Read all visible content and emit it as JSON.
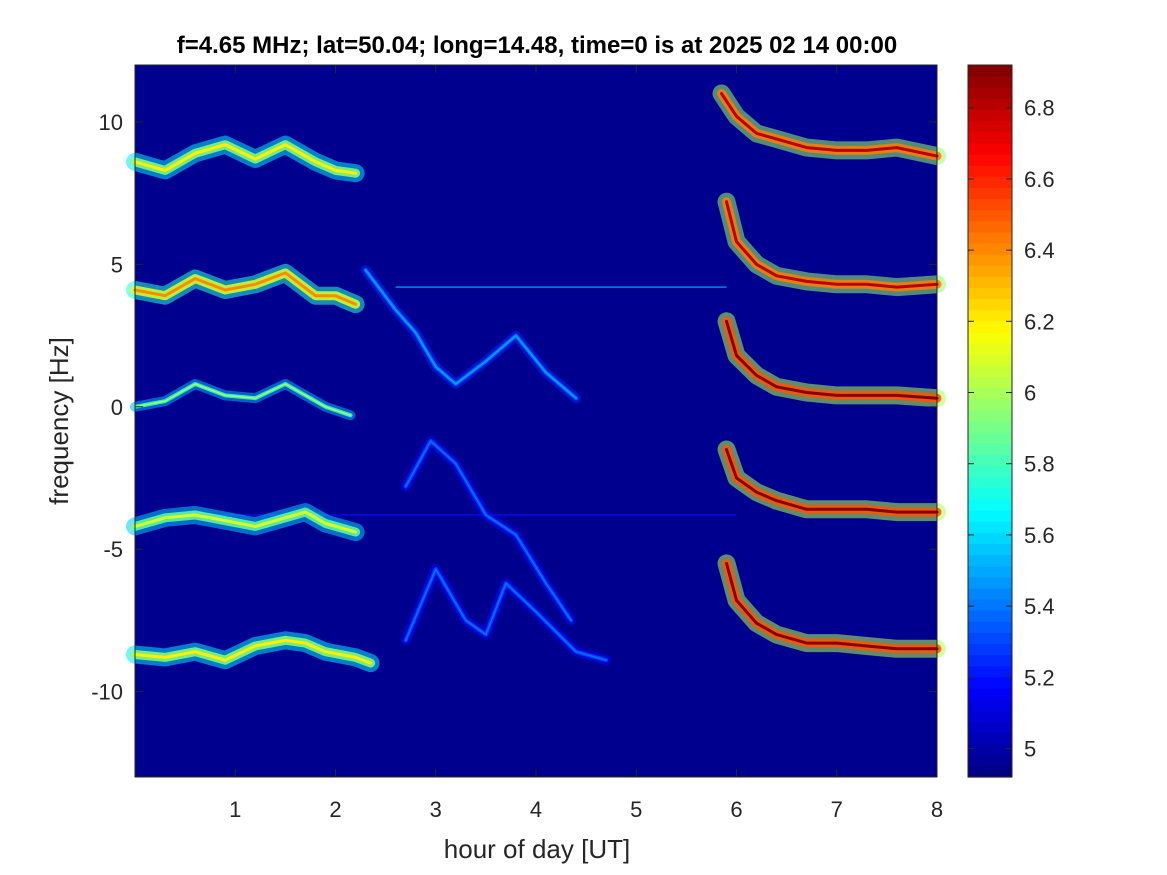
{
  "chart_data": {
    "type": "heatmap",
    "title": "f=4.65 MHz;  lat=50.04; long=14.48, time=0 is at 2025 02 14 00:00",
    "xlabel": "hour of day [UT]",
    "ylabel": "frequency [Hz]",
    "xlim": [
      0,
      8
    ],
    "ylim": [
      -13,
      12
    ],
    "xticks": [
      1,
      2,
      3,
      4,
      5,
      6,
      7,
      8
    ],
    "yticks": [
      10,
      5,
      0,
      -5,
      -10
    ],
    "colormap": "jet",
    "background_color": "#00008f",
    "colorbar": {
      "clim": [
        4.92,
        6.92
      ],
      "ticks": [
        "6.8",
        "6.6",
        "6.4",
        "6.2",
        "6",
        "5.8",
        "5.6",
        "5.4",
        "5.2",
        "5"
      ],
      "tick_values": [
        6.8,
        6.6,
        6.4,
        6.2,
        6.0,
        5.8,
        5.6,
        5.4,
        5.2,
        5.0
      ]
    },
    "traces": [
      {
        "name": "",
        "offset": 8.8,
        "intensity": 6.2,
        "points": [
          [
            0.0,
            8.6
          ],
          [
            0.3,
            8.3
          ],
          [
            0.6,
            8.9
          ],
          [
            0.9,
            9.2
          ],
          [
            1.2,
            8.7
          ],
          [
            1.5,
            9.2
          ],
          [
            1.8,
            8.6
          ],
          [
            2.0,
            8.3
          ],
          [
            2.2,
            8.2
          ]
        ]
      },
      {
        "name": "",
        "offset": 4.2,
        "intensity": 6.4,
        "points": [
          [
            0.0,
            4.1
          ],
          [
            0.3,
            3.9
          ],
          [
            0.6,
            4.5
          ],
          [
            0.9,
            4.1
          ],
          [
            1.2,
            4.3
          ],
          [
            1.5,
            4.7
          ],
          [
            1.8,
            3.9
          ],
          [
            2.0,
            3.9
          ],
          [
            2.2,
            3.6
          ]
        ]
      },
      {
        "name": "",
        "offset": 0.2,
        "intensity": 6.0,
        "points": [
          [
            0.0,
            0.0
          ],
          [
            0.3,
            0.2
          ],
          [
            0.6,
            0.8
          ],
          [
            0.9,
            0.4
          ],
          [
            1.2,
            0.3
          ],
          [
            1.5,
            0.8
          ],
          [
            1.7,
            0.4
          ],
          [
            1.9,
            0.0
          ],
          [
            2.15,
            -0.3
          ]
        ]
      },
      {
        "name": "",
        "offset": -4.0,
        "intensity": 6.1,
        "points": [
          [
            0.0,
            -4.2
          ],
          [
            0.3,
            -3.9
          ],
          [
            0.6,
            -3.8
          ],
          [
            0.9,
            -4.0
          ],
          [
            1.2,
            -4.2
          ],
          [
            1.5,
            -3.9
          ],
          [
            1.7,
            -3.7
          ],
          [
            1.9,
            -4.1
          ],
          [
            2.2,
            -4.4
          ]
        ]
      },
      {
        "name": "",
        "offset": -8.6,
        "intensity": 6.2,
        "points": [
          [
            0.0,
            -8.7
          ],
          [
            0.3,
            -8.8
          ],
          [
            0.6,
            -8.6
          ],
          [
            0.9,
            -8.9
          ],
          [
            1.2,
            -8.4
          ],
          [
            1.5,
            -8.2
          ],
          [
            1.7,
            -8.3
          ],
          [
            1.9,
            -8.6
          ],
          [
            2.2,
            -8.8
          ],
          [
            2.35,
            -9.0
          ]
        ]
      },
      {
        "name": "",
        "offset": 9.0,
        "intensity": 6.8,
        "points": [
          [
            5.85,
            11.0
          ],
          [
            6.0,
            10.2
          ],
          [
            6.2,
            9.6
          ],
          [
            6.4,
            9.4
          ],
          [
            6.7,
            9.1
          ],
          [
            7.0,
            9.0
          ],
          [
            7.3,
            9.0
          ],
          [
            7.6,
            9.1
          ],
          [
            8.0,
            8.8
          ]
        ]
      },
      {
        "name": "",
        "offset": 4.3,
        "intensity": 6.8,
        "points": [
          [
            5.9,
            7.2
          ],
          [
            6.0,
            5.8
          ],
          [
            6.2,
            5.0
          ],
          [
            6.4,
            4.6
          ],
          [
            6.7,
            4.4
          ],
          [
            7.0,
            4.3
          ],
          [
            7.3,
            4.3
          ],
          [
            7.6,
            4.2
          ],
          [
            8.0,
            4.3
          ]
        ]
      },
      {
        "name": "",
        "offset": 0.4,
        "intensity": 6.9,
        "points": [
          [
            5.9,
            3.0
          ],
          [
            6.0,
            1.8
          ],
          [
            6.2,
            1.1
          ],
          [
            6.4,
            0.7
          ],
          [
            6.7,
            0.5
          ],
          [
            7.0,
            0.4
          ],
          [
            7.3,
            0.4
          ],
          [
            7.6,
            0.4
          ],
          [
            8.0,
            0.3
          ]
        ]
      },
      {
        "name": "",
        "offset": -3.6,
        "intensity": 6.9,
        "points": [
          [
            5.9,
            -1.5
          ],
          [
            6.0,
            -2.5
          ],
          [
            6.2,
            -3.0
          ],
          [
            6.4,
            -3.3
          ],
          [
            6.7,
            -3.6
          ],
          [
            7.0,
            -3.6
          ],
          [
            7.3,
            -3.6
          ],
          [
            7.6,
            -3.7
          ],
          [
            8.0,
            -3.7
          ]
        ]
      },
      {
        "name": "",
        "offset": -8.4,
        "intensity": 6.9,
        "points": [
          [
            5.9,
            -5.5
          ],
          [
            6.0,
            -6.8
          ],
          [
            6.2,
            -7.6
          ],
          [
            6.4,
            -8.0
          ],
          [
            6.7,
            -8.3
          ],
          [
            7.0,
            -8.3
          ],
          [
            7.3,
            -8.4
          ],
          [
            7.6,
            -8.5
          ],
          [
            8.0,
            -8.5
          ]
        ]
      },
      {
        "name": "",
        "offset": 0,
        "intensity": 5.5,
        "points": [
          [
            2.3,
            4.8
          ],
          [
            2.6,
            3.4
          ],
          [
            2.8,
            2.6
          ],
          [
            3.0,
            1.4
          ],
          [
            3.2,
            0.8
          ],
          [
            3.5,
            1.6
          ],
          [
            3.8,
            2.5
          ],
          [
            4.1,
            1.2
          ],
          [
            4.4,
            0.3
          ]
        ]
      },
      {
        "name": "",
        "offset": 0,
        "intensity": 5.4,
        "points": [
          [
            2.7,
            -2.8
          ],
          [
            2.95,
            -1.2
          ],
          [
            3.2,
            -2.0
          ],
          [
            3.5,
            -3.8
          ],
          [
            3.8,
            -4.5
          ],
          [
            4.1,
            -6.2
          ],
          [
            4.35,
            -7.5
          ]
        ]
      },
      {
        "name": "",
        "offset": 0,
        "intensity": 5.4,
        "points": [
          [
            2.7,
            -8.2
          ],
          [
            3.0,
            -5.7
          ],
          [
            3.3,
            -7.5
          ],
          [
            3.5,
            -8.0
          ],
          [
            3.7,
            -6.2
          ],
          [
            4.0,
            -7.2
          ],
          [
            4.4,
            -8.6
          ],
          [
            4.7,
            -8.9
          ]
        ]
      }
    ],
    "horizontal_lines": [
      {
        "y": 4.2,
        "x_range": [
          2.6,
          5.9
        ],
        "intensity": 5.5
      },
      {
        "y": -3.8,
        "x_range": [
          0.5,
          6.0
        ],
        "intensity": 5.2
      }
    ]
  }
}
